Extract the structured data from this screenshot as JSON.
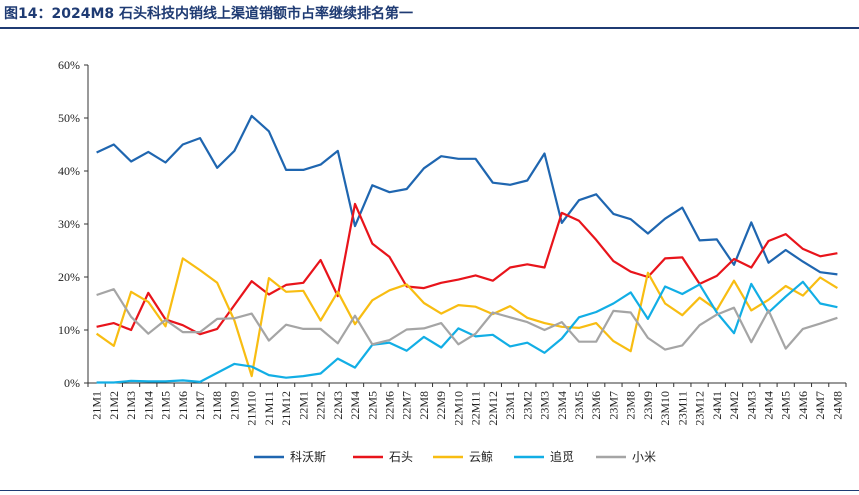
{
  "page": {
    "title": "图14：2024M8 石头科技内销线上渠道销额市占率继续排名第一"
  },
  "chart_data": {
    "type": "line",
    "title": "图14：2024M8 石头科技内销线上渠道销额市占率继续排名第一",
    "xlabel": "",
    "ylabel": "",
    "ylim": [
      0,
      60
    ],
    "y_ticks": [
      0,
      10,
      20,
      30,
      40,
      50,
      60
    ],
    "y_tick_labels": [
      "0%",
      "10%",
      "20%",
      "30%",
      "40%",
      "50%",
      "60%"
    ],
    "grid": false,
    "legend_position": "bottom",
    "categories": [
      "21M1",
      "21M2",
      "21M3",
      "21M4",
      "21M5",
      "21M6",
      "21M7",
      "21M8",
      "21M9",
      "21M10",
      "21M11",
      "21M12",
      "22M1",
      "22M2",
      "22M3",
      "22M4",
      "22M5",
      "22M6",
      "22M7",
      "22M8",
      "22M9",
      "22M10",
      "22M11",
      "22M12",
      "23M1",
      "23M2",
      "23M3",
      "23M4",
      "23M5",
      "23M6",
      "23M7",
      "23M8",
      "23M9",
      "23M10",
      "23M11",
      "23M12",
      "24M1",
      "24M2",
      "24M3",
      "24M4",
      "24M5",
      "24M6",
      "24M7",
      "24M8"
    ],
    "series": [
      {
        "name": "科沃斯",
        "color": "#1f66b0",
        "values": [
          43.5,
          45,
          41.8,
          43.6,
          41.6,
          45,
          46.2,
          40.6,
          43.8,
          50.4,
          47.5,
          40.2,
          40.2,
          41.2,
          43.8,
          29.6,
          37.3,
          36,
          36.6,
          40.5,
          42.8,
          42.3,
          42.3,
          37.8,
          37.4,
          38.2,
          43.3,
          30.2,
          34.5,
          35.6,
          31.9,
          30.9,
          28.2,
          31,
          33.1,
          26.9,
          27.1,
          22.3,
          30.3,
          22.7,
          25.1,
          22.9,
          20.9,
          20.5
        ]
      },
      {
        "name": "石头",
        "color": "#e8141b",
        "values": [
          10.6,
          11.3,
          10,
          17,
          12,
          10.9,
          9.2,
          10.2,
          14.7,
          19.2,
          16.7,
          18.5,
          18.9,
          23.2,
          16.4,
          33.8,
          26.3,
          23.8,
          18.2,
          17.9,
          18.9,
          19.5,
          20.3,
          19.3,
          21.8,
          22.4,
          21.8,
          32.1,
          30.6,
          27,
          23,
          21,
          20,
          23.5,
          23.7,
          18.7,
          20.2,
          23.4,
          21.8,
          26.8,
          28.1,
          25.3,
          23.9,
          24.5
        ]
      },
      {
        "name": "云鲸",
        "color": "#f8bd12",
        "values": [
          9.3,
          7,
          17.2,
          15.3,
          10.7,
          23.5,
          21.3,
          18.9,
          11.8,
          1.3,
          19.8,
          17.2,
          17.4,
          11.8,
          17.2,
          11.1,
          15.6,
          17.5,
          18.6,
          15.1,
          13.1,
          14.7,
          14.4,
          13,
          14.5,
          12.3,
          11.3,
          10.6,
          10.4,
          11.3,
          7.9,
          6,
          20.8,
          15,
          12.8,
          16.1,
          13.8,
          19.3,
          13.7,
          15.7,
          18.3,
          16.5,
          19.9,
          17.9
        ]
      },
      {
        "name": "追觅",
        "color": "#12aee5",
        "values": [
          0.1,
          0.1,
          0.4,
          0.3,
          0.3,
          0.5,
          0.2,
          1.9,
          3.6,
          3.1,
          1.5,
          1,
          1.3,
          1.8,
          4.6,
          2.9,
          7.2,
          7.6,
          6.1,
          8.7,
          6.7,
          10.3,
          8.8,
          9.1,
          6.9,
          7.6,
          5.7,
          8.4,
          12.4,
          13.4,
          15,
          17.1,
          12.1,
          18.2,
          16.8,
          18.6,
          13.3,
          9.4,
          18.7,
          13.3,
          16.3,
          19.1,
          15,
          14.3
        ]
      },
      {
        "name": "小米",
        "color": "#a5a5a5",
        "values": [
          16.6,
          17.7,
          12.5,
          9.3,
          11.9,
          9.6,
          9.6,
          12.1,
          12.2,
          13.1,
          8,
          11,
          10.2,
          10.2,
          7.5,
          12.7,
          7.3,
          8.1,
          10.1,
          10.3,
          11.3,
          7.3,
          9.3,
          13.3,
          12.4,
          11.5,
          10,
          11.5,
          7.8,
          7.8,
          13.6,
          13.3,
          8.5,
          6.3,
          7.1,
          10.9,
          12.9,
          14.2,
          7.7,
          13.7,
          6.5,
          10.2,
          11.2,
          12.3
        ]
      }
    ]
  }
}
